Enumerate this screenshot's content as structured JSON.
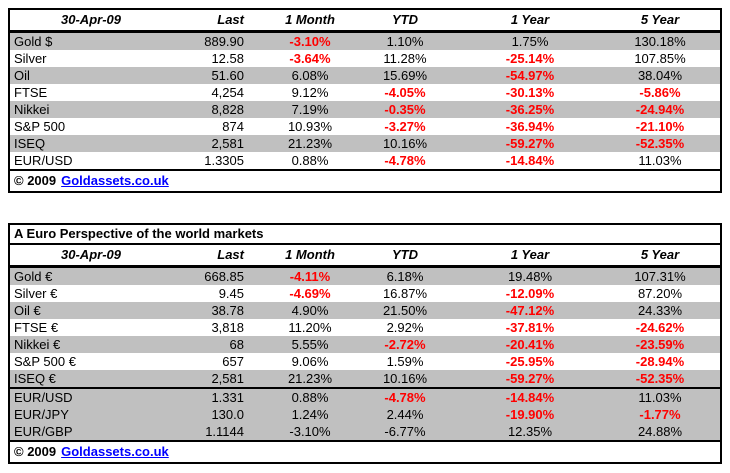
{
  "colors": {
    "negative_value_red": "#FF0000",
    "row_stripe_gray": "#C0C0C0",
    "link_blue": "#0000FF",
    "border_black": "#000000"
  },
  "footer": {
    "copyright": "© 2009",
    "link": "Goldassets.co.uk"
  },
  "t1": {
    "date": "30-Apr-09",
    "headers": {
      "last": "Last",
      "m1": "1 Month",
      "ytd": "YTD",
      "y1": "1 Year",
      "y5": "5 Year"
    },
    "rows": [
      {
        "label": "Gold $",
        "last": "889.90",
        "m1": {
          "v": "-3.10%",
          "c": "neg"
        },
        "ytd": {
          "v": "1.10%",
          "c": "pos"
        },
        "y1": {
          "v": "1.75%",
          "c": "pos"
        },
        "y5": {
          "v": "130.18%",
          "c": "pos"
        }
      },
      {
        "label": "Silver",
        "last": "12.58",
        "m1": {
          "v": "-3.64%",
          "c": "neg"
        },
        "ytd": {
          "v": "11.28%",
          "c": "pos"
        },
        "y1": {
          "v": "-25.14%",
          "c": "neg"
        },
        "y5": {
          "v": "107.85%",
          "c": "pos"
        }
      },
      {
        "label": "Oil",
        "last": "51.60",
        "m1": {
          "v": "6.08%",
          "c": "pos"
        },
        "ytd": {
          "v": "15.69%",
          "c": "pos"
        },
        "y1": {
          "v": "-54.97%",
          "c": "neg"
        },
        "y5": {
          "v": "38.04%",
          "c": "pos"
        }
      },
      {
        "label": "FTSE",
        "last": "4,254",
        "m1": {
          "v": "9.12%",
          "c": "pos"
        },
        "ytd": {
          "v": "-4.05%",
          "c": "neg"
        },
        "y1": {
          "v": "-30.13%",
          "c": "neg"
        },
        "y5": {
          "v": "-5.86%",
          "c": "neg"
        }
      },
      {
        "label": "Nikkei",
        "last": "8,828",
        "m1": {
          "v": "7.19%",
          "c": "pos"
        },
        "ytd": {
          "v": "-0.35%",
          "c": "neg"
        },
        "y1": {
          "v": "-36.25%",
          "c": "neg"
        },
        "y5": {
          "v": "-24.94%",
          "c": "neg"
        }
      },
      {
        "label": "S&P 500",
        "last": "874",
        "m1": {
          "v": "10.93%",
          "c": "pos"
        },
        "ytd": {
          "v": "-3.27%",
          "c": "neg"
        },
        "y1": {
          "v": "-36.94%",
          "c": "neg"
        },
        "y5": {
          "v": "-21.10%",
          "c": "neg"
        }
      },
      {
        "label": "ISEQ",
        "last": "2,581",
        "m1": {
          "v": "21.23%",
          "c": "pos"
        },
        "ytd": {
          "v": "10.16%",
          "c": "pos"
        },
        "y1": {
          "v": "-59.27%",
          "c": "neg"
        },
        "y5": {
          "v": "-52.35%",
          "c": "neg"
        }
      },
      {
        "label": "EUR/USD",
        "last": "1.3305",
        "m1": {
          "v": "0.88%",
          "c": "pos"
        },
        "ytd": {
          "v": "-4.78%",
          "c": "neg"
        },
        "y1": {
          "v": "-14.84%",
          "c": "neg"
        },
        "y5": {
          "v": "11.03%",
          "c": "pos"
        }
      }
    ]
  },
  "t2": {
    "title": "A Euro Perspective of the world markets",
    "date": "30-Apr-09",
    "headers": {
      "last": "Last",
      "m1": "1 Month",
      "ytd": "YTD",
      "y1": "1 Year",
      "y5": "5 Year"
    },
    "rows": [
      {
        "label": "Gold €",
        "last": "668.85",
        "m1": {
          "v": "-4.11%",
          "c": "neg"
        },
        "ytd": {
          "v": "6.18%",
          "c": "pos"
        },
        "y1": {
          "v": "19.48%",
          "c": "pos"
        },
        "y5": {
          "v": "107.31%",
          "c": "pos"
        }
      },
      {
        "label": "Silver €",
        "last": "9.45",
        "m1": {
          "v": "-4.69%",
          "c": "neg"
        },
        "ytd": {
          "v": "16.87%",
          "c": "pos"
        },
        "y1": {
          "v": "-12.09%",
          "c": "neg"
        },
        "y5": {
          "v": "87.20%",
          "c": "pos"
        }
      },
      {
        "label": "Oil €",
        "last": "38.78",
        "m1": {
          "v": "4.90%",
          "c": "pos"
        },
        "ytd": {
          "v": "21.50%",
          "c": "pos"
        },
        "y1": {
          "v": "-47.12%",
          "c": "neg"
        },
        "y5": {
          "v": "24.33%",
          "c": "pos"
        }
      },
      {
        "label": "FTSE €",
        "last": "3,818",
        "m1": {
          "v": "11.20%",
          "c": "pos"
        },
        "ytd": {
          "v": "2.92%",
          "c": "pos"
        },
        "y1": {
          "v": "-37.81%",
          "c": "neg"
        },
        "y5": {
          "v": "-24.62%",
          "c": "neg"
        }
      },
      {
        "label": "Nikkei €",
        "last": "68",
        "m1": {
          "v": "5.55%",
          "c": "pos"
        },
        "ytd": {
          "v": "-2.72%",
          "c": "neg"
        },
        "y1": {
          "v": "-20.41%",
          "c": "neg"
        },
        "y5": {
          "v": "-23.59%",
          "c": "neg"
        }
      },
      {
        "label": "S&P 500 €",
        "last": "657",
        "m1": {
          "v": "9.06%",
          "c": "pos"
        },
        "ytd": {
          "v": "1.59%",
          "c": "pos"
        },
        "y1": {
          "v": "-25.95%",
          "c": "neg"
        },
        "y5": {
          "v": "-28.94%",
          "c": "neg"
        }
      },
      {
        "label": "ISEQ €",
        "last": "2,581",
        "m1": {
          "v": "21.23%",
          "c": "pos"
        },
        "ytd": {
          "v": "10.16%",
          "c": "pos"
        },
        "y1": {
          "v": "-59.27%",
          "c": "neg"
        },
        "y5": {
          "v": "-52.35%",
          "c": "neg"
        }
      }
    ],
    "fx": [
      {
        "label": "EUR/USD",
        "last": "1.331",
        "m1": {
          "v": "0.88%",
          "c": "pos"
        },
        "ytd": {
          "v": "-4.78%",
          "c": "neg"
        },
        "y1": {
          "v": "-14.84%",
          "c": "neg"
        },
        "y5": {
          "v": "11.03%",
          "c": "pos"
        }
      },
      {
        "label": "EUR/JPY",
        "last": "130.0",
        "m1": {
          "v": "1.24%",
          "c": "pos"
        },
        "ytd": {
          "v": "2.44%",
          "c": "pos"
        },
        "y1": {
          "v": "-19.90%",
          "c": "neg"
        },
        "y5": {
          "v": "-1.77%",
          "c": "neg"
        }
      },
      {
        "label": "EUR/GBP",
        "last": "1.1144",
        "m1": {
          "v": "-3.10%",
          "c": "pos"
        },
        "ytd": {
          "v": "-6.77%",
          "c": "pos"
        },
        "y1": {
          "v": "12.35%",
          "c": "pos"
        },
        "y5": {
          "v": "24.88%",
          "c": "pos"
        }
      }
    ]
  }
}
